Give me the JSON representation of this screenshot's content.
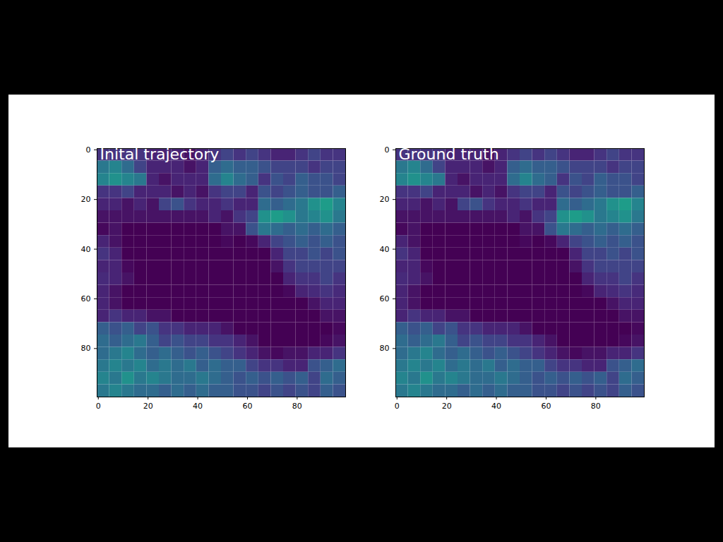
{
  "chart_data": [
    {
      "type": "heatmap",
      "title": "Inital trajectory",
      "color": "viridis",
      "clim": [
        0,
        1
      ],
      "xlim": [
        -0.5,
        99.5
      ],
      "ylim": [
        99.5,
        -0.5
      ],
      "xticks": [
        0,
        20,
        40,
        60,
        80
      ],
      "yticks": [
        0,
        20,
        40,
        60,
        80
      ],
      "x_edges": [
        -0.5,
        4.5,
        9.5,
        14.5,
        19.5,
        24.5,
        29.5,
        34.5,
        39.5,
        44.5,
        49.5,
        54.5,
        59.5,
        64.5,
        69.5,
        74.5,
        79.5,
        84.5,
        89.5,
        94.5,
        99.5
      ],
      "y_edges": [
        -0.5,
        4.5,
        9.5,
        14.5,
        19.5,
        24.5,
        29.5,
        34.5,
        39.5,
        44.5,
        49.5,
        54.5,
        59.5,
        64.5,
        69.5,
        74.5,
        79.5,
        84.5,
        89.5,
        94.5,
        99.5
      ],
      "cells": [
        [
          0.15,
          0.15,
          0.15,
          0.15,
          0.1,
          0.1,
          0.1,
          0.05,
          0.1,
          0.15,
          0.2,
          0.15,
          0.2,
          0.15,
          0.1,
          0.1,
          0.15,
          0.2,
          0.15,
          0.15
        ],
        [
          0.4,
          0.45,
          0.35,
          0.2,
          0.1,
          0.1,
          0.1,
          0.05,
          0.1,
          0.3,
          0.35,
          0.3,
          0.3,
          0.25,
          0.2,
          0.2,
          0.2,
          0.15,
          0.2,
          0.2
        ],
        [
          0.45,
          0.5,
          0.45,
          0.4,
          0.1,
          0.05,
          0.1,
          0.1,
          0.1,
          0.35,
          0.45,
          0.35,
          0.3,
          0.15,
          0.25,
          0.2,
          0.3,
          0.25,
          0.25,
          0.2
        ],
        [
          0.15,
          0.15,
          0.2,
          0.1,
          0.1,
          0.1,
          0.05,
          0.1,
          0.05,
          0.15,
          0.2,
          0.2,
          0.1,
          0.25,
          0.2,
          0.25,
          0.3,
          0.25,
          0.25,
          0.3
        ],
        [
          0.1,
          0.1,
          0.05,
          0.1,
          0.05,
          0.2,
          0.25,
          0.15,
          0.1,
          0.1,
          0.15,
          0.1,
          0.1,
          0.35,
          0.3,
          0.35,
          0.4,
          0.5,
          0.55,
          0.45
        ],
        [
          0.05,
          0.05,
          0.05,
          0.05,
          0.05,
          0.05,
          0.05,
          0.05,
          0.05,
          0.1,
          0.05,
          0.15,
          0.2,
          0.5,
          0.55,
          0.5,
          0.4,
          0.45,
          0.5,
          0.4
        ],
        [
          0.02,
          0.05,
          0,
          0,
          0,
          0,
          0,
          0,
          0,
          0,
          0.05,
          0.05,
          0.25,
          0.4,
          0.35,
          0.3,
          0.35,
          0.3,
          0.35,
          0.3
        ],
        [
          0.1,
          0.05,
          0,
          0,
          0,
          0,
          0,
          0,
          0,
          0,
          0.02,
          0,
          0.02,
          0.1,
          0.2,
          0.25,
          0.3,
          0.25,
          0.3,
          0.25
        ],
        [
          0.15,
          0.1,
          0,
          0,
          0,
          0,
          0,
          0,
          0,
          0,
          0,
          0,
          0,
          0,
          0.1,
          0.2,
          0.2,
          0.25,
          0.2,
          0.25
        ],
        [
          0.1,
          0.1,
          0.02,
          0,
          0,
          0,
          0,
          0,
          0,
          0,
          0,
          0,
          0,
          0,
          0.05,
          0.15,
          0.2,
          0.2,
          0.2,
          0.2
        ],
        [
          0.12,
          0.1,
          0.05,
          0,
          0,
          0,
          0,
          0,
          0,
          0,
          0,
          0,
          0,
          0,
          0,
          0.1,
          0.15,
          0.15,
          0.2,
          0.15
        ],
        [
          0.1,
          0.05,
          0,
          0,
          0,
          0,
          0,
          0,
          0,
          0,
          0,
          0,
          0,
          0,
          0,
          0.02,
          0.1,
          0.12,
          0.15,
          0.12
        ],
        [
          0.1,
          0.05,
          0,
          0,
          0,
          0,
          0,
          0,
          0,
          0,
          0,
          0,
          0,
          0,
          0,
          0,
          0,
          0.05,
          0.1,
          0.1
        ],
        [
          0.1,
          0.15,
          0.1,
          0.1,
          0.05,
          0.05,
          0,
          0,
          0,
          0,
          0,
          0,
          0,
          0,
          0,
          0,
          0,
          0,
          0.05,
          0.05
        ],
        [
          0.3,
          0.25,
          0.3,
          0.2,
          0.25,
          0.15,
          0.15,
          0.1,
          0.1,
          0.1,
          0.05,
          0,
          0,
          0,
          0,
          0,
          0,
          0,
          0,
          0.02
        ],
        [
          0.35,
          0.3,
          0.35,
          0.4,
          0.3,
          0.2,
          0.25,
          0.2,
          0.2,
          0.15,
          0.15,
          0.1,
          0.05,
          0,
          0,
          0,
          0,
          0,
          0.02,
          0.05
        ],
        [
          0.35,
          0.4,
          0.45,
          0.35,
          0.3,
          0.35,
          0.3,
          0.25,
          0.3,
          0.25,
          0.2,
          0.15,
          0.1,
          0.05,
          0.02,
          0.05,
          0.05,
          0.1,
          0.1,
          0.15
        ],
        [
          0.4,
          0.45,
          0.4,
          0.45,
          0.35,
          0.4,
          0.35,
          0.4,
          0.3,
          0.35,
          0.3,
          0.3,
          0.2,
          0.15,
          0.15,
          0.1,
          0.1,
          0.25,
          0.3,
          0.35
        ],
        [
          0.45,
          0.4,
          0.5,
          0.4,
          0.45,
          0.4,
          0.35,
          0.35,
          0.4,
          0.35,
          0.3,
          0.25,
          0.3,
          0.25,
          0.3,
          0.25,
          0.3,
          0.2,
          0.35,
          0.3
        ],
        [
          0.4,
          0.45,
          0.4,
          0.35,
          0.35,
          0.3,
          0.35,
          0.3,
          0.35,
          0.3,
          0.3,
          0.25,
          0.25,
          0.2,
          0.25,
          0.2,
          0.25,
          0.2,
          0.3,
          0.25
        ]
      ]
    },
    {
      "type": "heatmap",
      "title": "Ground truth",
      "color": "viridis",
      "clim": [
        0,
        1
      ],
      "xlim": [
        -0.5,
        99.5
      ],
      "ylim": [
        99.5,
        -0.5
      ],
      "xticks": [
        0,
        20,
        40,
        60,
        80
      ],
      "yticks": [
        0,
        20,
        40,
        60,
        80
      ],
      "x_edges": [
        -0.5,
        4.5,
        9.5,
        14.5,
        19.5,
        24.5,
        29.5,
        34.5,
        39.5,
        44.5,
        49.5,
        54.5,
        59.5,
        64.5,
        69.5,
        74.5,
        79.5,
        84.5,
        89.5,
        94.5,
        99.5
      ],
      "y_edges": [
        -0.5,
        4.5,
        9.5,
        14.5,
        19.5,
        24.5,
        29.5,
        34.5,
        39.5,
        44.5,
        49.5,
        54.5,
        59.5,
        64.5,
        69.5,
        74.5,
        79.5,
        84.5,
        89.5,
        94.5,
        99.5
      ],
      "cells": [
        [
          0.15,
          0.15,
          0.15,
          0.15,
          0.1,
          0.1,
          0.1,
          0.05,
          0.1,
          0.15,
          0.2,
          0.15,
          0.2,
          0.15,
          0.1,
          0.1,
          0.15,
          0.2,
          0.15,
          0.15
        ],
        [
          0.4,
          0.45,
          0.35,
          0.2,
          0.1,
          0.1,
          0.1,
          0.05,
          0.1,
          0.3,
          0.35,
          0.3,
          0.3,
          0.25,
          0.2,
          0.2,
          0.2,
          0.15,
          0.2,
          0.2
        ],
        [
          0.45,
          0.5,
          0.45,
          0.4,
          0.1,
          0.05,
          0.1,
          0.1,
          0.1,
          0.35,
          0.45,
          0.35,
          0.3,
          0.15,
          0.25,
          0.2,
          0.3,
          0.25,
          0.25,
          0.2
        ],
        [
          0.15,
          0.15,
          0.2,
          0.1,
          0.1,
          0.1,
          0.05,
          0.1,
          0.05,
          0.15,
          0.2,
          0.2,
          0.1,
          0.25,
          0.2,
          0.25,
          0.3,
          0.25,
          0.25,
          0.3
        ],
        [
          0.1,
          0.1,
          0.05,
          0.1,
          0.05,
          0.2,
          0.25,
          0.15,
          0.1,
          0.1,
          0.15,
          0.1,
          0.1,
          0.35,
          0.3,
          0.35,
          0.4,
          0.5,
          0.55,
          0.45
        ],
        [
          0.05,
          0.05,
          0.05,
          0.05,
          0.05,
          0.05,
          0.05,
          0.05,
          0.05,
          0.1,
          0.05,
          0.15,
          0.2,
          0.5,
          0.55,
          0.5,
          0.4,
          0.45,
          0.5,
          0.4
        ],
        [
          0.02,
          0.05,
          0,
          0,
          0,
          0,
          0,
          0,
          0,
          0,
          0.05,
          0.05,
          0.25,
          0.4,
          0.35,
          0.3,
          0.35,
          0.3,
          0.35,
          0.3
        ],
        [
          0.1,
          0.05,
          0,
          0,
          0,
          0,
          0,
          0,
          0,
          0,
          0.02,
          0,
          0.02,
          0.1,
          0.2,
          0.25,
          0.3,
          0.25,
          0.3,
          0.25
        ],
        [
          0.15,
          0.1,
          0,
          0,
          0,
          0,
          0,
          0,
          0,
          0,
          0,
          0,
          0,
          0,
          0.1,
          0.2,
          0.2,
          0.25,
          0.2,
          0.25
        ],
        [
          0.1,
          0.1,
          0.02,
          0,
          0,
          0,
          0,
          0,
          0,
          0,
          0,
          0,
          0,
          0,
          0.05,
          0.15,
          0.2,
          0.2,
          0.2,
          0.2
        ],
        [
          0.12,
          0.1,
          0.05,
          0,
          0,
          0,
          0,
          0,
          0,
          0,
          0,
          0,
          0,
          0,
          0,
          0.1,
          0.15,
          0.15,
          0.2,
          0.15
        ],
        [
          0.1,
          0.05,
          0,
          0,
          0,
          0,
          0,
          0,
          0,
          0,
          0,
          0,
          0,
          0,
          0,
          0.02,
          0.1,
          0.12,
          0.15,
          0.12
        ],
        [
          0.1,
          0.05,
          0,
          0,
          0,
          0,
          0,
          0,
          0,
          0,
          0,
          0,
          0,
          0,
          0,
          0,
          0,
          0.05,
          0.1,
          0.1
        ],
        [
          0.1,
          0.15,
          0.1,
          0.1,
          0.05,
          0.05,
          0,
          0,
          0,
          0,
          0,
          0,
          0,
          0,
          0,
          0,
          0,
          0,
          0.05,
          0.05
        ],
        [
          0.3,
          0.25,
          0.3,
          0.2,
          0.25,
          0.15,
          0.15,
          0.1,
          0.1,
          0.1,
          0.05,
          0,
          0,
          0,
          0,
          0,
          0,
          0,
          0,
          0.02
        ],
        [
          0.35,
          0.3,
          0.35,
          0.4,
          0.3,
          0.2,
          0.25,
          0.2,
          0.2,
          0.15,
          0.15,
          0.1,
          0.05,
          0,
          0,
          0,
          0,
          0,
          0.02,
          0.05
        ],
        [
          0.35,
          0.4,
          0.45,
          0.35,
          0.3,
          0.35,
          0.3,
          0.25,
          0.3,
          0.25,
          0.2,
          0.15,
          0.1,
          0.05,
          0.02,
          0.05,
          0.05,
          0.1,
          0.1,
          0.15
        ],
        [
          0.4,
          0.45,
          0.4,
          0.45,
          0.35,
          0.4,
          0.35,
          0.4,
          0.3,
          0.35,
          0.3,
          0.3,
          0.2,
          0.15,
          0.15,
          0.1,
          0.1,
          0.25,
          0.3,
          0.35
        ],
        [
          0.45,
          0.4,
          0.5,
          0.4,
          0.45,
          0.4,
          0.35,
          0.35,
          0.4,
          0.35,
          0.3,
          0.25,
          0.3,
          0.25,
          0.3,
          0.25,
          0.3,
          0.2,
          0.35,
          0.3
        ],
        [
          0.4,
          0.45,
          0.4,
          0.35,
          0.35,
          0.3,
          0.35,
          0.3,
          0.35,
          0.3,
          0.3,
          0.25,
          0.25,
          0.2,
          0.25,
          0.2,
          0.25,
          0.2,
          0.3,
          0.25
        ]
      ]
    }
  ]
}
